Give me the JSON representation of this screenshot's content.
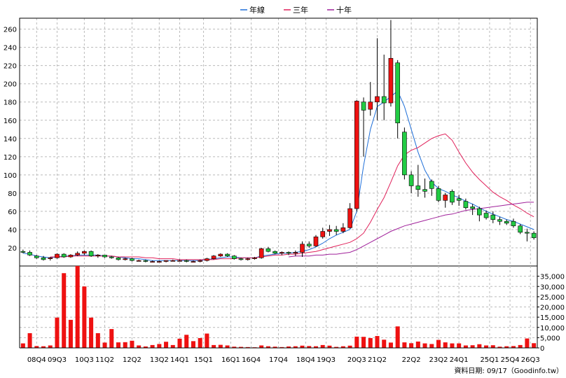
{
  "legend": [
    {
      "name": "年線",
      "color": "#1f6fd8"
    },
    {
      "name": "三年",
      "color": "#e0205a"
    },
    {
      "name": "十年",
      "color": "#a0209a"
    }
  ],
  "footer": "資料日期: 09/17（Goodinfo.tw）",
  "colors": {
    "up": "#ee1111",
    "down": "#22cc44",
    "volume": "#ee1111",
    "outline": "#000000",
    "grid": "#bbbbbb"
  },
  "chart_data": {
    "type": "candlestick",
    "subtitle_note": "",
    "price_axis": {
      "ylim": [
        0,
        272
      ],
      "ticks": [
        20,
        40,
        60,
        80,
        100,
        120,
        140,
        160,
        180,
        200,
        220,
        240,
        260
      ],
      "side": "left"
    },
    "volume_axis": {
      "ylim": [
        0,
        40000
      ],
      "ticks": [
        "0",
        "5,000",
        "10,000",
        "15,000",
        "20,000",
        "25,000",
        "30,000",
        "35,000"
      ],
      "tick_values": [
        0,
        5000,
        10000,
        15000,
        20000,
        25000,
        30000,
        35000
      ],
      "side": "right"
    },
    "x_labels": [
      {
        "i": 2,
        "label": "08Q4"
      },
      {
        "i": 5,
        "label": "09Q3"
      },
      {
        "i": 9,
        "label": "10Q3"
      },
      {
        "i": 12,
        "label": "11Q2"
      },
      {
        "i": 16,
        "label": "12Q2"
      },
      {
        "i": 20,
        "label": "13Q2"
      },
      {
        "i": 23,
        "label": "14Q1"
      },
      {
        "i": 26.5,
        "label": "15Q1"
      },
      {
        "i": 30.5,
        "label": "16Q1"
      },
      {
        "i": 33.5,
        "label": "16Q4"
      },
      {
        "i": 37.5,
        "label": "17Q4"
      },
      {
        "i": 41.5,
        "label": "18Q4"
      },
      {
        "i": 44.5,
        "label": "19Q3"
      },
      {
        "i": 49,
        "label": "20Q3"
      },
      {
        "i": 52,
        "label": "21Q2"
      },
      {
        "i": 57,
        "label": "22Q2"
      },
      {
        "i": 61,
        "label": "23Q2"
      },
      {
        "i": 64,
        "label": "24Q1"
      },
      {
        "i": 68.5,
        "label": "25Q1"
      },
      {
        "i": 71.5,
        "label": "25Q4"
      },
      {
        "i": 74.5,
        "label": "26Q3"
      }
    ],
    "grid": true,
    "candles": [
      {
        "o": 16,
        "h": 18,
        "l": 14,
        "c": 15
      },
      {
        "o": 15,
        "h": 17,
        "l": 11,
        "c": 12
      },
      {
        "o": 11,
        "h": 12,
        "l": 8,
        "c": 9
      },
      {
        "o": 9,
        "h": 11,
        "l": 6,
        "c": 7
      },
      {
        "o": 8,
        "h": 10,
        "l": 6,
        "c": 9
      },
      {
        "o": 9,
        "h": 14,
        "l": 8,
        "c": 13
      },
      {
        "o": 13,
        "h": 14,
        "l": 9,
        "c": 10
      },
      {
        "o": 10,
        "h": 13,
        "l": 9,
        "c": 12
      },
      {
        "o": 12,
        "h": 16,
        "l": 11,
        "c": 14
      },
      {
        "o": 14,
        "h": 17,
        "l": 12,
        "c": 16
      },
      {
        "o": 16,
        "h": 17,
        "l": 10,
        "c": 11
      },
      {
        "o": 11,
        "h": 13,
        "l": 9,
        "c": 12
      },
      {
        "o": 12,
        "h": 12,
        "l": 9,
        "c": 10
      },
      {
        "o": 10,
        "h": 11,
        "l": 8,
        "c": 9
      },
      {
        "o": 9,
        "h": 10,
        "l": 6,
        "c": 7
      },
      {
        "o": 7,
        "h": 9,
        "l": 6,
        "c": 8
      },
      {
        "o": 8,
        "h": 9,
        "l": 5,
        "c": 6
      },
      {
        "o": 6,
        "h": 7,
        "l": 5,
        "c": 6
      },
      {
        "o": 6,
        "h": 7,
        "l": 4,
        "c": 5
      },
      {
        "o": 5,
        "h": 6,
        "l": 4,
        "c": 5
      },
      {
        "o": 5,
        "h": 6,
        "l": 4,
        "c": 5
      },
      {
        "o": 5,
        "h": 6,
        "l": 4,
        "c": 6
      },
      {
        "o": 6,
        "h": 7,
        "l": 5,
        "c": 6
      },
      {
        "o": 6,
        "h": 7,
        "l": 5,
        "c": 6
      },
      {
        "o": 6,
        "h": 7,
        "l": 4,
        "c": 5
      },
      {
        "o": 5,
        "h": 6,
        "l": 4,
        "c": 5
      },
      {
        "o": 5,
        "h": 7,
        "l": 4,
        "c": 6
      },
      {
        "o": 6,
        "h": 9,
        "l": 5,
        "c": 8
      },
      {
        "o": 8,
        "h": 12,
        "l": 7,
        "c": 11
      },
      {
        "o": 11,
        "h": 14,
        "l": 10,
        "c": 13
      },
      {
        "o": 13,
        "h": 14,
        "l": 10,
        "c": 11
      },
      {
        "o": 11,
        "h": 12,
        "l": 7,
        "c": 8
      },
      {
        "o": 8,
        "h": 9,
        "l": 6,
        "c": 7
      },
      {
        "o": 7,
        "h": 9,
        "l": 6,
        "c": 8
      },
      {
        "o": 8,
        "h": 10,
        "l": 7,
        "c": 9
      },
      {
        "o": 9,
        "h": 20,
        "l": 8,
        "c": 19
      },
      {
        "o": 19,
        "h": 21,
        "l": 15,
        "c": 16
      },
      {
        "o": 16,
        "h": 17,
        "l": 13,
        "c": 14
      },
      {
        "o": 14,
        "h": 16,
        "l": 12,
        "c": 15
      },
      {
        "o": 15,
        "h": 16,
        "l": 12,
        "c": 14
      },
      {
        "o": 14,
        "h": 17,
        "l": 11,
        "c": 15
      },
      {
        "o": 15,
        "h": 27,
        "l": 10,
        "c": 24
      },
      {
        "o": 24,
        "h": 27,
        "l": 20,
        "c": 22
      },
      {
        "o": 22,
        "h": 34,
        "l": 21,
        "c": 32
      },
      {
        "o": 32,
        "h": 42,
        "l": 30,
        "c": 38
      },
      {
        "o": 38,
        "h": 45,
        "l": 33,
        "c": 40
      },
      {
        "o": 40,
        "h": 44,
        "l": 34,
        "c": 38
      },
      {
        "o": 38,
        "h": 47,
        "l": 36,
        "c": 42
      },
      {
        "o": 42,
        "h": 69,
        "l": 41,
        "c": 63
      },
      {
        "o": 63,
        "h": 182,
        "l": 60,
        "c": 181
      },
      {
        "o": 180,
        "h": 185,
        "l": 120,
        "c": 171
      },
      {
        "o": 172,
        "h": 202,
        "l": 165,
        "c": 180
      },
      {
        "o": 180,
        "h": 250,
        "l": 160,
        "c": 186
      },
      {
        "o": 186,
        "h": 232,
        "l": 160,
        "c": 179
      },
      {
        "o": 179,
        "h": 270,
        "l": 175,
        "c": 228
      },
      {
        "o": 223,
        "h": 226,
        "l": 140,
        "c": 157
      },
      {
        "o": 147,
        "h": 152,
        "l": 95,
        "c": 100
      },
      {
        "o": 100,
        "h": 104,
        "l": 80,
        "c": 88
      },
      {
        "o": 88,
        "h": 111,
        "l": 76,
        "c": 84
      },
      {
        "o": 84,
        "h": 96,
        "l": 75,
        "c": 82
      },
      {
        "o": 93,
        "h": 95,
        "l": 77,
        "c": 85
      },
      {
        "o": 85,
        "h": 88,
        "l": 70,
        "c": 72
      },
      {
        "o": 72,
        "h": 80,
        "l": 64,
        "c": 78
      },
      {
        "o": 82,
        "h": 84,
        "l": 67,
        "c": 70
      },
      {
        "o": 74,
        "h": 78,
        "l": 66,
        "c": 72
      },
      {
        "o": 71,
        "h": 74,
        "l": 62,
        "c": 64
      },
      {
        "o": 65,
        "h": 68,
        "l": 56,
        "c": 63
      },
      {
        "o": 63,
        "h": 65,
        "l": 49,
        "c": 56
      },
      {
        "o": 58,
        "h": 61,
        "l": 51,
        "c": 53
      },
      {
        "o": 56,
        "h": 60,
        "l": 47,
        "c": 51
      },
      {
        "o": 51,
        "h": 54,
        "l": 45,
        "c": 49
      },
      {
        "o": 49,
        "h": 51,
        "l": 45,
        "c": 47
      },
      {
        "o": 49,
        "h": 52,
        "l": 42,
        "c": 44
      },
      {
        "o": 44,
        "h": 46,
        "l": 35,
        "c": 37
      },
      {
        "o": 37,
        "h": 41,
        "l": 27,
        "c": 36
      },
      {
        "o": 36,
        "h": 38,
        "l": 29,
        "c": 31
      }
    ],
    "volume": [
      2200,
      7200,
      900,
      800,
      1200,
      14800,
      36500,
      13700,
      40000,
      30000,
      14800,
      7200,
      2600,
      9200,
      2700,
      2800,
      3500,
      1200,
      700,
      1400,
      1900,
      3000,
      1400,
      4500,
      6400,
      3300,
      4800,
      7000,
      1400,
      1500,
      1200,
      600,
      500,
      400,
      300,
      1200,
      800,
      600,
      400,
      700,
      800,
      1100,
      900,
      800,
      1400,
      1100,
      500,
      800,
      1100,
      5500,
      5400,
      4800,
      5800,
      4000,
      2600,
      10500,
      2700,
      2300,
      3100,
      2200,
      1900,
      3900,
      2700,
      2200,
      2200,
      1200,
      1300,
      1800,
      1200,
      1300,
      600,
      800,
      900,
      1400,
      4600,
      2300
    ],
    "series": [
      {
        "name": "年線",
        "color": "#1f6fd8",
        "values": [
          14,
          13,
          11,
          10,
          9,
          10,
          11,
          11,
          12,
          12,
          12,
          12,
          11,
          11,
          10,
          9,
          8,
          8,
          7,
          6,
          6,
          6,
          6,
          6,
          6,
          6,
          6,
          7,
          8,
          9,
          10,
          10,
          9,
          9,
          9,
          11,
          12,
          13,
          14,
          14,
          15,
          16,
          18,
          21,
          25,
          30,
          34,
          37,
          40,
          60,
          110,
          150,
          175,
          180,
          186,
          192,
          175,
          150,
          125,
          105,
          92,
          85,
          82,
          78,
          75,
          71,
          68,
          64,
          60,
          57,
          54,
          51,
          49,
          46,
          43,
          40
        ]
      },
      {
        "name": "三年",
        "color": "#e0205a",
        "values": [
          null,
          null,
          null,
          null,
          10,
          10,
          10,
          11,
          11,
          11,
          11,
          11,
          11,
          11,
          10,
          10,
          10,
          10,
          9,
          9,
          8,
          8,
          8,
          7,
          7,
          7,
          7,
          7,
          7,
          8,
          8,
          8,
          9,
          9,
          9,
          10,
          11,
          12,
          12,
          13,
          13,
          14,
          15,
          16,
          18,
          20,
          22,
          24,
          26,
          30,
          36,
          48,
          62,
          75,
          92,
          110,
          122,
          127,
          130,
          135,
          140,
          143,
          145,
          138,
          125,
          113,
          103,
          95,
          88,
          81,
          76,
          72,
          67,
          63,
          58,
          54
        ]
      },
      {
        "name": "十年",
        "color": "#a0209a",
        "values": [
          null,
          null,
          null,
          null,
          null,
          null,
          null,
          null,
          null,
          null,
          null,
          null,
          null,
          null,
          null,
          null,
          null,
          null,
          null,
          null,
          null,
          null,
          null,
          null,
          null,
          null,
          null,
          null,
          null,
          null,
          null,
          null,
          null,
          null,
          null,
          null,
          null,
          null,
          null,
          10,
          11,
          11,
          11,
          12,
          12,
          13,
          13,
          14,
          15,
          18,
          22,
          26,
          30,
          34,
          38,
          41,
          44,
          46,
          48,
          50,
          52,
          54,
          56,
          57,
          59,
          61,
          62,
          63,
          64,
          65,
          66,
          67,
          68,
          69,
          70,
          70
        ]
      }
    ]
  }
}
